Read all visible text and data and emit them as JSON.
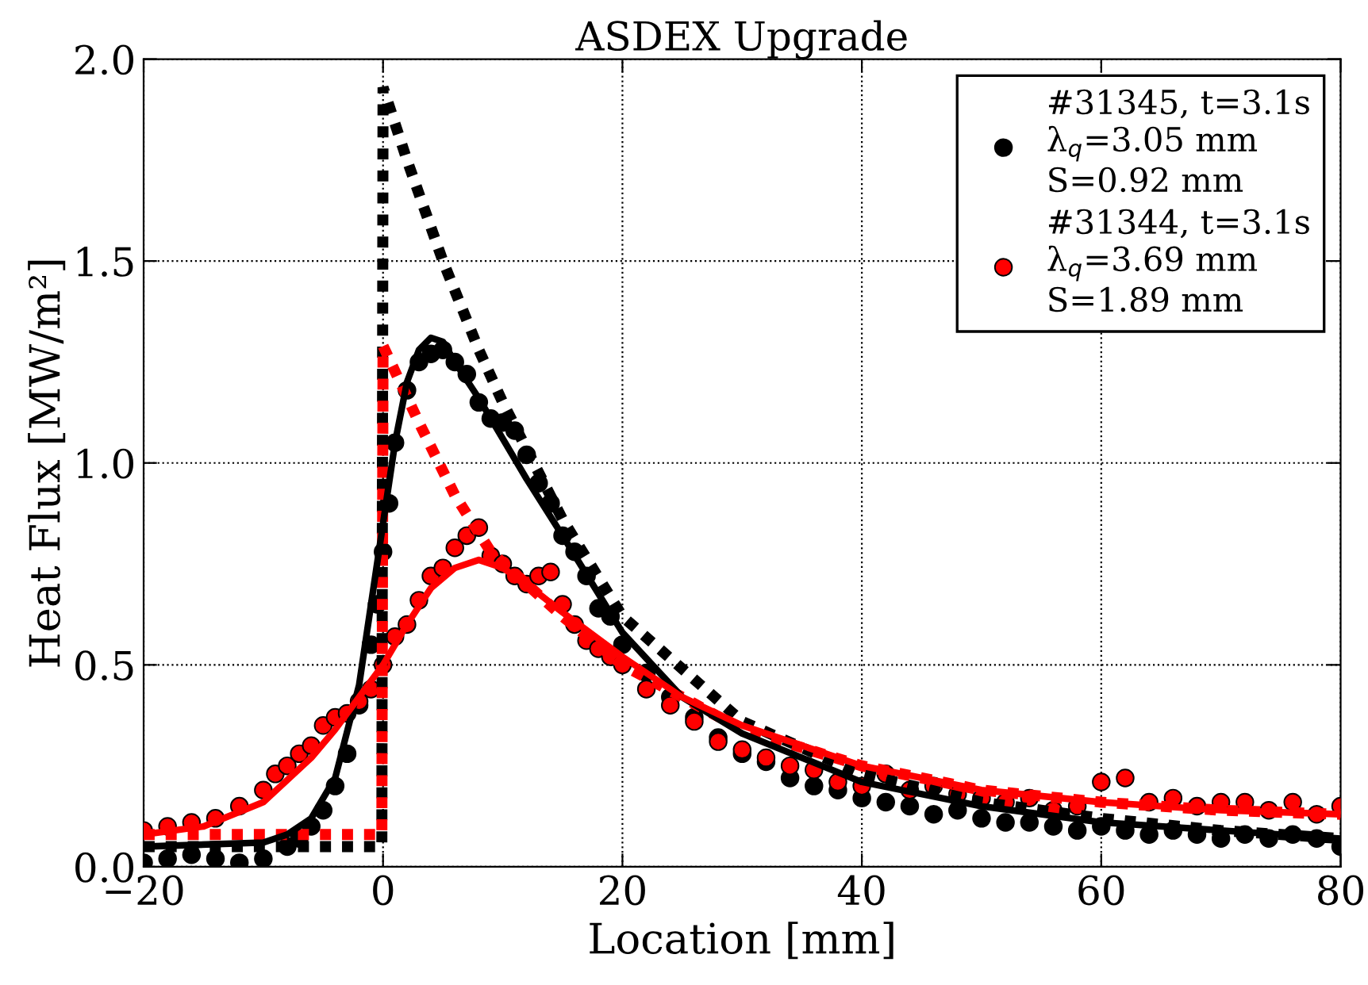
{
  "chart_data": {
    "type": "scatter",
    "title": "ASDEX Upgrade",
    "xlabel": "Location [mm]",
    "ylabel": "Heat Flux [MW/m²]",
    "xlim": [
      -20,
      80
    ],
    "ylim": [
      0,
      2.0
    ],
    "xticks": [
      {
        "value": -20,
        "label": "−20"
      },
      0,
      20,
      40,
      60,
      80
    ],
    "yticks": [
      {
        "value": 0,
        "label": "0.0"
      },
      0.5,
      {
        "value": 1,
        "label": "1.0"
      },
      1.5,
      {
        "value": 2,
        "label": "2.0"
      }
    ],
    "grid": true,
    "legend": "top right",
    "series": [
      {
        "type": "line",
        "line_style": "dotted",
        "color": "#000000",
        "x": [
          -20,
          -0.1,
          0,
          2,
          5,
          8,
          10,
          15,
          20,
          30,
          40,
          50,
          60,
          70,
          80
        ],
        "values": [
          0.05,
          0.05,
          1.93,
          1.75,
          1.5,
          1.28,
          1.15,
          0.86,
          0.62,
          0.36,
          0.23,
          0.16,
          0.12,
          0.09,
          0.07
        ]
      },
      {
        "type": "line",
        "line_style": "dotted",
        "color": "#ff0000",
        "x": [
          -20,
          -0.1,
          0,
          3,
          6,
          9,
          12,
          15,
          20,
          30,
          40,
          50,
          60,
          70,
          80
        ],
        "values": [
          0.08,
          0.08,
          1.29,
          1.1,
          0.92,
          0.78,
          0.7,
          0.62,
          0.5,
          0.34,
          0.25,
          0.19,
          0.16,
          0.14,
          0.13
        ]
      },
      {
        "marker": "circle",
        "name": "#31345, t=3.1s\nλ$_{q}$=3.05 mm\nS=0.92 mm",
        "color": "#000000",
        "x": [
          -20,
          -18,
          -16,
          -14,
          -12,
          -10,
          -8,
          -7,
          -6,
          -5,
          -4,
          -3,
          -2,
          -1,
          -0.5,
          0,
          0.5,
          1,
          2,
          3,
          4,
          5,
          6,
          7,
          8,
          9,
          10,
          11,
          12,
          13,
          14,
          15,
          16,
          17,
          18,
          19,
          20,
          22,
          24,
          26,
          28,
          30,
          32,
          34,
          36,
          38,
          40,
          42,
          44,
          46,
          48,
          50,
          52,
          54,
          56,
          58,
          60,
          62,
          64,
          66,
          68,
          70,
          72,
          74,
          76,
          78,
          80
        ],
        "values": [
          0.01,
          0.02,
          0.03,
          0.02,
          0.01,
          0.02,
          0.05,
          0.07,
          0.1,
          0.14,
          0.2,
          0.28,
          0.4,
          0.55,
          0.65,
          0.78,
          0.9,
          1.05,
          1.18,
          1.25,
          1.27,
          1.28,
          1.25,
          1.22,
          1.15,
          1.11,
          1.1,
          1.08,
          1.02,
          0.95,
          0.9,
          0.82,
          0.78,
          0.72,
          0.64,
          0.62,
          0.55,
          0.48,
          0.42,
          0.37,
          0.32,
          0.28,
          0.26,
          0.22,
          0.2,
          0.19,
          0.17,
          0.16,
          0.15,
          0.13,
          0.14,
          0.12,
          0.11,
          0.11,
          0.1,
          0.09,
          0.1,
          0.09,
          0.08,
          0.09,
          0.08,
          0.07,
          0.08,
          0.07,
          0.08,
          0.07,
          0.05
        ]
      },
      {
        "marker": "circle",
        "name": "#31344, t=3.1s\nλ$_{q}$=3.69 mm\nS=1.89 mm",
        "color": "#ff0000",
        "x": [
          -20,
          -18,
          -16,
          -14,
          -12,
          -10,
          -9,
          -8,
          -7,
          -6,
          -5,
          -4,
          -3,
          -2,
          -1,
          0,
          1,
          2,
          3,
          4,
          5,
          6,
          7,
          8,
          9,
          10,
          11,
          12,
          13,
          14,
          15,
          16,
          17,
          18,
          19,
          20,
          22,
          24,
          26,
          28,
          30,
          32,
          34,
          36,
          38,
          40,
          42,
          44,
          46,
          48,
          50,
          52,
          54,
          56,
          58,
          60,
          62,
          64,
          66,
          68,
          70,
          72,
          74,
          76,
          78,
          80
        ],
        "values": [
          0.09,
          0.1,
          0.11,
          0.12,
          0.15,
          0.19,
          0.23,
          0.25,
          0.28,
          0.3,
          0.35,
          0.37,
          0.38,
          0.41,
          0.44,
          0.5,
          0.57,
          0.6,
          0.66,
          0.72,
          0.74,
          0.79,
          0.82,
          0.84,
          0.77,
          0.75,
          0.72,
          0.7,
          0.72,
          0.73,
          0.65,
          0.6,
          0.56,
          0.54,
          0.52,
          0.5,
          0.44,
          0.4,
          0.36,
          0.31,
          0.29,
          0.27,
          0.25,
          0.24,
          0.21,
          0.2,
          0.23,
          0.19,
          0.2,
          0.18,
          0.17,
          0.16,
          0.17,
          0.14,
          0.15,
          0.21,
          0.22,
          0.16,
          0.17,
          0.15,
          0.16,
          0.16,
          0.14,
          0.16,
          0.13,
          0.15
        ]
      },
      {
        "type": "line",
        "line_style": "solid",
        "color": "#000000",
        "x": [
          -20,
          -10,
          -8,
          -6,
          -4,
          -2,
          0,
          1,
          2,
          3,
          4,
          5,
          6,
          8,
          10,
          12,
          15,
          20,
          25,
          30,
          40,
          50,
          60,
          70,
          80
        ],
        "values": [
          0.05,
          0.06,
          0.08,
          0.12,
          0.22,
          0.45,
          0.85,
          1.05,
          1.2,
          1.28,
          1.31,
          1.3,
          1.25,
          1.16,
          1.06,
          0.96,
          0.82,
          0.58,
          0.42,
          0.33,
          0.21,
          0.15,
          0.11,
          0.09,
          0.07
        ]
      },
      {
        "type": "line",
        "line_style": "solid",
        "color": "#ff0000",
        "x": [
          -20,
          -15,
          -10,
          -6,
          -4,
          -2,
          0,
          2,
          4,
          6,
          8,
          10,
          12,
          15,
          20,
          25,
          30,
          40,
          50,
          60,
          70,
          80
        ],
        "values": [
          0.08,
          0.1,
          0.16,
          0.27,
          0.34,
          0.42,
          0.5,
          0.6,
          0.69,
          0.74,
          0.76,
          0.74,
          0.7,
          0.63,
          0.52,
          0.42,
          0.35,
          0.25,
          0.19,
          0.16,
          0.14,
          0.13
        ]
      }
    ]
  }
}
